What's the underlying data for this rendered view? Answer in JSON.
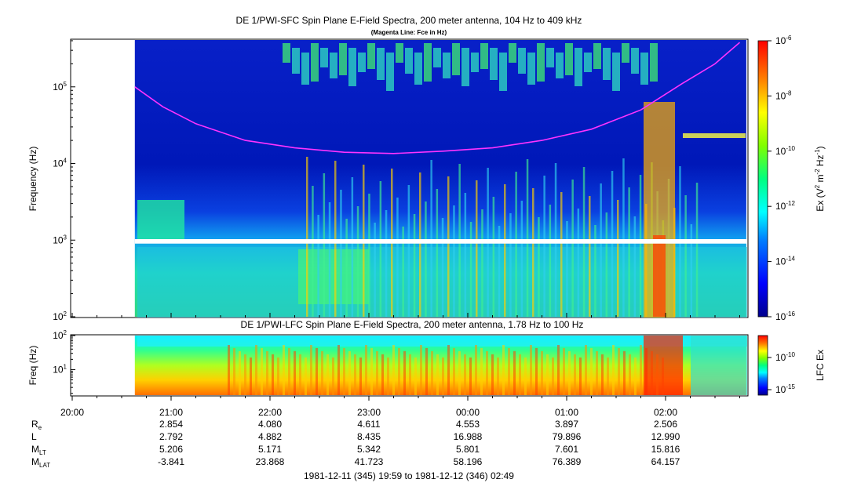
{
  "chart_data": [
    {
      "type": "heatmap",
      "title": "DE 1/PWI-SFC  Spin Plane E-Field Spectra, 200 meter antenna, 104 Hz to 409 kHz",
      "subtitle": "(Magenta Line: Fce in Hz)",
      "ylabel": "Frequency (Hz)",
      "yscale": "log",
      "ylim": [
        100,
        409000
      ],
      "y_ticks": [
        {
          "value": 100,
          "label": "10^2"
        },
        {
          "value": 1000,
          "label": "10^3"
        },
        {
          "value": 10000,
          "label": "10^4"
        },
        {
          "value": 100000,
          "label": "10^5"
        }
      ],
      "data_start": "20:38",
      "data_end": "02:49",
      "gap_band_hz": [
        900,
        1030
      ],
      "colorbar": {
        "label_main": "Ex (V",
        "label_sup1": "2",
        "label_mid": " m",
        "label_sup2": "-2",
        "label_hz": " Hz",
        "label_sup3": "-1",
        "label_close": ")",
        "scale": "log",
        "range": [
          1e-16,
          1e-06
        ],
        "ticks": [
          {
            "value": 1e-06,
            "label": "10^-6"
          },
          {
            "value": 1e-08,
            "label": "10^-8"
          },
          {
            "value": 1e-10,
            "label": "10^-10"
          },
          {
            "value": 1e-12,
            "label": "10^-12"
          },
          {
            "value": 1e-14,
            "label": "10^-14"
          },
          {
            "value": 1e-16,
            "label": "10^-16"
          }
        ]
      },
      "overlay_line": {
        "color": "#ff33ff",
        "points": [
          {
            "t": "20:38",
            "hz": 100000
          },
          {
            "t": "20:55",
            "hz": 55000
          },
          {
            "t": "21:15",
            "hz": 33000
          },
          {
            "t": "21:45",
            "hz": 20000
          },
          {
            "t": "22:15",
            "hz": 16000
          },
          {
            "t": "22:45",
            "hz": 14000
          },
          {
            "t": "23:15",
            "hz": 13500
          },
          {
            "t": "23:45",
            "hz": 14500
          },
          {
            "t": "00:15",
            "hz": 16000
          },
          {
            "t": "00:45",
            "hz": 20000
          },
          {
            "t": "01:15",
            "hz": 28000
          },
          {
            "t": "01:45",
            "hz": 50000
          },
          {
            "t": "02:10",
            "hz": 110000
          },
          {
            "t": "02:30",
            "hz": 200000
          },
          {
            "t": "02:45",
            "hz": 380000
          }
        ]
      }
    },
    {
      "type": "heatmap",
      "title": "DE 1/PWI-LFC  Spin Plane E-Field Spectra, 200 meter antenna, 1.78 Hz to 100 Hz",
      "ylabel": "Freq (Hz)",
      "yscale": "log",
      "ylim": [
        1.78,
        100
      ],
      "y_ticks": [
        {
          "value": 10,
          "label": "10^1"
        },
        {
          "value": 100,
          "label": "10^2"
        }
      ],
      "colorbar": {
        "label": "LFC Ex",
        "scale": "log",
        "ticks": [
          {
            "value": 1e-10,
            "label": "10^-10"
          },
          {
            "value": 1e-15,
            "label": "10^-15"
          }
        ]
      }
    }
  ],
  "x_axis": {
    "ticks": [
      {
        "t": "20:00",
        "label": "20:00"
      },
      {
        "t": "21:00",
        "label": "21:00"
      },
      {
        "t": "22:00",
        "label": "22:00"
      },
      {
        "t": "23:00",
        "label": "23:00"
      },
      {
        "t": "00:00",
        "label": "00:00"
      },
      {
        "t": "01:00",
        "label": "01:00"
      },
      {
        "t": "02:00",
        "label": "02:00"
      }
    ]
  },
  "ephemeris": {
    "rows": [
      {
        "label": "R",
        "sub": "e",
        "values": [
          "2.854",
          "4.080",
          "4.611",
          "4.553",
          "3.897",
          "2.506"
        ]
      },
      {
        "label": "L",
        "sub": "",
        "values": [
          "2.792",
          "4.882",
          "8.435",
          "16.988",
          "79.896",
          "12.990"
        ]
      },
      {
        "label": "M",
        "sub": "LT",
        "values": [
          "5.206",
          "5.171",
          "5.342",
          "5.801",
          "7.601",
          "15.816"
        ]
      },
      {
        "label": "M",
        "sub": "LAT",
        "values": [
          "-3.841",
          "23.868",
          "41.723",
          "58.196",
          "76.389",
          "64.157"
        ]
      }
    ]
  },
  "time_range": "1981-12-11 (345) 19:59 to 1981-12-12 (346) 02:49"
}
